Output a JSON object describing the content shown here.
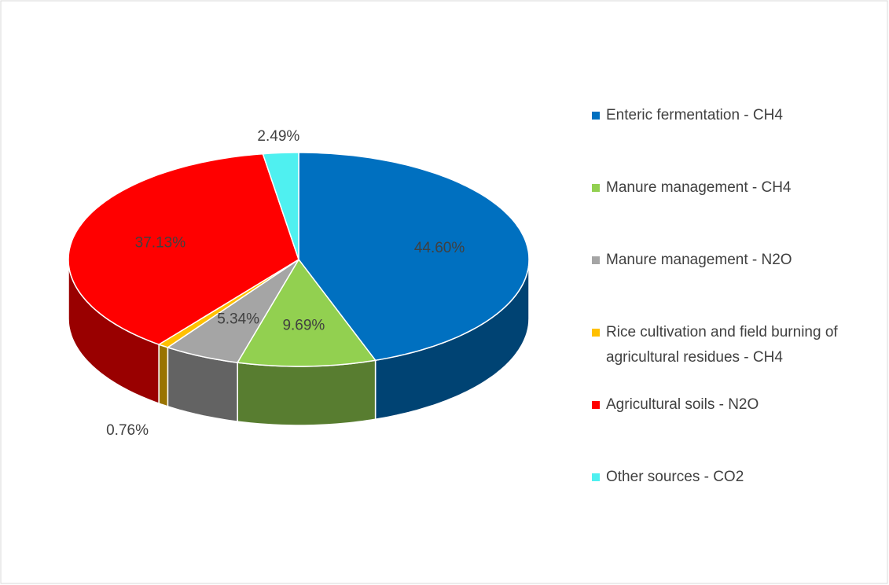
{
  "chart_data": {
    "type": "pie",
    "categories": [
      "Enteric fermentation - CH4",
      "Manure management - CH4",
      "Manure management - N2O",
      "Rice cultivation and field burning of agricultural residues - CH4",
      "Agricultural soils - N2O",
      "Other sources - CO2"
    ],
    "values": [
      44.6,
      9.69,
      5.34,
      0.76,
      37.13,
      2.49
    ],
    "value_labels": [
      "44.60%",
      "9.69%",
      "5.34%",
      "0.76%",
      "37.13%",
      "2.49%"
    ],
    "colors": [
      "#0070c0",
      "#92d050",
      "#a5a5a5",
      "#ffc000",
      "#ff0000",
      "#4ff0f0"
    ],
    "legend": "right"
  }
}
